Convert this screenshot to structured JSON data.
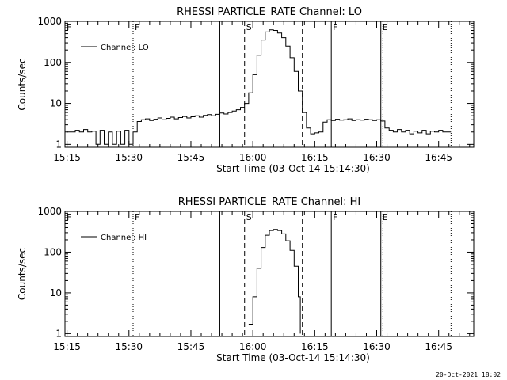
{
  "footer": {
    "timestamp": "20-Oct-2021 18:02"
  },
  "chart_data": [
    {
      "type": "line",
      "title": "RHESSI PARTICLE_RATE Channel: LO",
      "xlabel": "Start Time (03-Oct-14 15:14:30)",
      "ylabel": "Counts/sec",
      "legend": {
        "label": "Channel: LO",
        "placement": "top-left"
      },
      "x_unit": "time HH:MM",
      "xlim": [
        "15:14:30",
        "16:53:30"
      ],
      "ylim": [
        0.85,
        1000
      ],
      "y_scale": "log",
      "x_ticks": [
        "15:15",
        "15:30",
        "15:45",
        "16:00",
        "16:15",
        "16:30",
        "16:45"
      ],
      "y_ticks": [
        "1",
        "10",
        "100",
        "1000"
      ],
      "markers": [
        {
          "time": "15:14:30",
          "label": "F",
          "style": "dotted"
        },
        {
          "time": "15:31",
          "label": "F",
          "style": "dotted"
        },
        {
          "time": "15:52",
          "label": "",
          "style": "solid"
        },
        {
          "time": "15:58",
          "label": "S",
          "style": "dashed"
        },
        {
          "time": "16:12",
          "label": "",
          "style": "dashed"
        },
        {
          "time": "16:19",
          "label": "F",
          "style": "solid"
        },
        {
          "time": "16:31",
          "label": "E",
          "style": "solid"
        },
        {
          "time": "16:31.5",
          "label": "",
          "style": "dotted"
        },
        {
          "time": "16:48",
          "label": "",
          "style": "dotted"
        }
      ],
      "series": [
        {
          "name": "Channel: LO",
          "points": [
            [
              "15:15",
              2
            ],
            [
              "15:16",
              2
            ],
            [
              "15:17",
              2.2
            ],
            [
              "15:18",
              2
            ],
            [
              "15:19",
              2.3
            ],
            [
              "15:20",
              2
            ],
            [
              "15:21",
              2.1
            ],
            [
              "15:22",
              1
            ],
            [
              "15:23",
              2.2
            ],
            [
              "15:24",
              1
            ],
            [
              "15:25",
              2
            ],
            [
              "15:26",
              1
            ],
            [
              "15:27",
              2.1
            ],
            [
              "15:28",
              1
            ],
            [
              "15:29",
              2.2
            ],
            [
              "15:30",
              1
            ],
            [
              "15:31",
              2
            ],
            [
              "15:32",
              3.6
            ],
            [
              "15:33",
              4
            ],
            [
              "15:34",
              4.2
            ],
            [
              "15:35",
              3.8
            ],
            [
              "15:36",
              4.1
            ],
            [
              "15:37",
              4.4
            ],
            [
              "15:38",
              4
            ],
            [
              "15:39",
              4.3
            ],
            [
              "15:40",
              4.6
            ],
            [
              "15:41",
              4.2
            ],
            [
              "15:42",
              4.5
            ],
            [
              "15:43",
              4.8
            ],
            [
              "15:44",
              4.4
            ],
            [
              "15:45",
              4.7
            ],
            [
              "15:46",
              5
            ],
            [
              "15:47",
              4.6
            ],
            [
              "15:48",
              5.1
            ],
            [
              "15:49",
              5.3
            ],
            [
              "15:50",
              5
            ],
            [
              "15:51",
              5.4
            ],
            [
              "15:52",
              5.8
            ],
            [
              "15:53",
              5.5
            ],
            [
              "15:54",
              6
            ],
            [
              "15:55",
              6.5
            ],
            [
              "15:56",
              7
            ],
            [
              "15:57",
              8
            ],
            [
              "15:58",
              10
            ],
            [
              "15:59",
              18
            ],
            [
              "16:00",
              50
            ],
            [
              "16:01",
              150
            ],
            [
              "16:02",
              350
            ],
            [
              "16:03",
              550
            ],
            [
              "16:04",
              620
            ],
            [
              "16:05",
              600
            ],
            [
              "16:06",
              520
            ],
            [
              "16:07",
              400
            ],
            [
              "16:08",
              250
            ],
            [
              "16:09",
              130
            ],
            [
              "16:10",
              60
            ],
            [
              "16:11",
              20
            ],
            [
              "16:12",
              6
            ],
            [
              "16:13",
              2.5
            ],
            [
              "16:14",
              1.8
            ],
            [
              "16:15",
              1.9
            ],
            [
              "16:16",
              2
            ],
            [
              "16:17",
              3.5
            ],
            [
              "16:18",
              4
            ],
            [
              "16:19",
              3.8
            ],
            [
              "16:20",
              4.1
            ],
            [
              "16:21",
              3.9
            ],
            [
              "16:22",
              4
            ],
            [
              "16:23",
              4.2
            ],
            [
              "16:24",
              3.8
            ],
            [
              "16:25",
              4
            ],
            [
              "16:26",
              3.9
            ],
            [
              "16:27",
              4.1
            ],
            [
              "16:28",
              4
            ],
            [
              "16:29",
              3.8
            ],
            [
              "16:30",
              4
            ],
            [
              "16:31",
              3.7
            ],
            [
              "16:32",
              2.5
            ],
            [
              "16:33",
              2.2
            ],
            [
              "16:34",
              2
            ],
            [
              "16:35",
              2.3
            ],
            [
              "16:36",
              2
            ],
            [
              "16:37",
              2.2
            ],
            [
              "16:38",
              1.8
            ],
            [
              "16:39",
              2.1
            ],
            [
              "16:40",
              1.9
            ],
            [
              "16:41",
              2.2
            ],
            [
              "16:42",
              1.8
            ],
            [
              "16:43",
              2.1
            ],
            [
              "16:44",
              2
            ],
            [
              "16:45",
              2.2
            ],
            [
              "16:46",
              2
            ],
            [
              "16:47",
              2
            ],
            [
              "16:48",
              2
            ]
          ]
        }
      ]
    },
    {
      "type": "line",
      "title": "RHESSI PARTICLE_RATE Channel: HI",
      "xlabel": "Start Time (03-Oct-14 15:14:30)",
      "ylabel": "Counts/sec",
      "legend": {
        "label": "Channel: HI",
        "placement": "top-left"
      },
      "x_unit": "time HH:MM",
      "xlim": [
        "15:14:30",
        "16:53:30"
      ],
      "ylim": [
        0.85,
        1000
      ],
      "y_scale": "log",
      "x_ticks": [
        "15:15",
        "15:30",
        "15:45",
        "16:00",
        "16:15",
        "16:30",
        "16:45"
      ],
      "y_ticks": [
        "1",
        "10",
        "100",
        "1000"
      ],
      "markers": [
        {
          "time": "15:14:30",
          "label": "F",
          "style": "dotted"
        },
        {
          "time": "15:31",
          "label": "F",
          "style": "dotted"
        },
        {
          "time": "15:52",
          "label": "",
          "style": "solid"
        },
        {
          "time": "15:58",
          "label": "S",
          "style": "dashed"
        },
        {
          "time": "16:12",
          "label": "",
          "style": "dashed"
        },
        {
          "time": "16:19",
          "label": "F",
          "style": "solid"
        },
        {
          "time": "16:31",
          "label": "E",
          "style": "solid"
        },
        {
          "time": "16:31.5",
          "label": "",
          "style": "dotted"
        },
        {
          "time": "16:48",
          "label": "",
          "style": "dotted"
        }
      ],
      "series": [
        {
          "name": "Channel: HI",
          "points": [
            [
              "15:59",
              1.7
            ],
            [
              "16:00",
              8
            ],
            [
              "16:01",
              40
            ],
            [
              "16:02",
              130
            ],
            [
              "16:03",
              260
            ],
            [
              "16:04",
              340
            ],
            [
              "16:05",
              360
            ],
            [
              "16:06",
              340
            ],
            [
              "16:07",
              280
            ],
            [
              "16:08",
              190
            ],
            [
              "16:09",
              110
            ],
            [
              "16:10",
              45
            ],
            [
              "16:11",
              8
            ],
            [
              "16:11.5",
              1
            ]
          ]
        }
      ]
    }
  ]
}
